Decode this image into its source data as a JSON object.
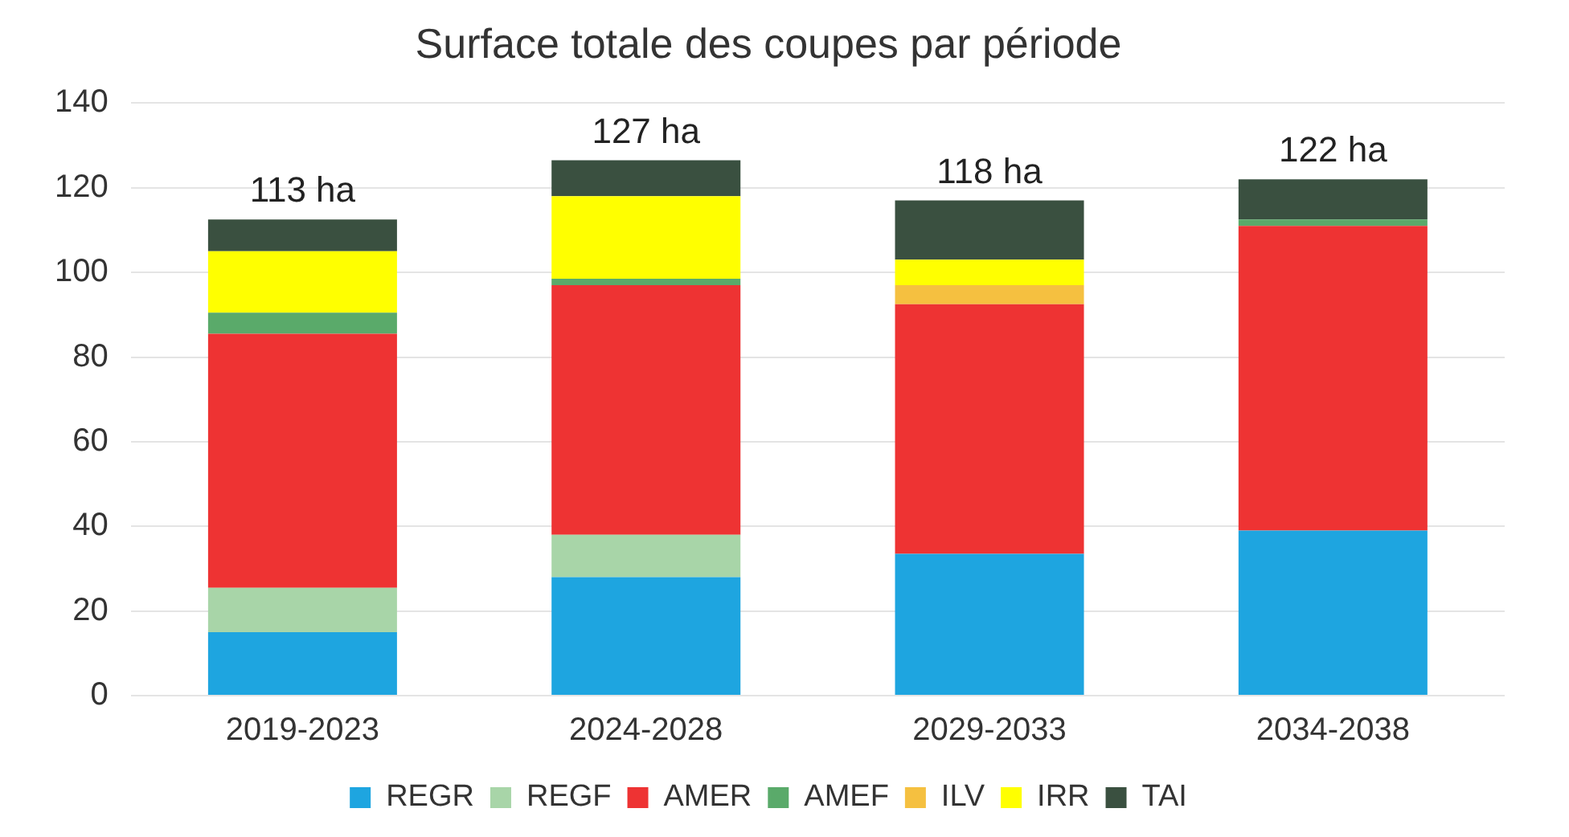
{
  "chart_data": {
    "type": "bar",
    "title": "Surface totale des coupes par période",
    "categories": [
      "2019-2023",
      "2024-2028",
      "2029-2033",
      "2034-2038"
    ],
    "stacked": true,
    "series": [
      {
        "name": "REGR",
        "color": "#1ea5e0",
        "values": [
          15,
          28,
          33.5,
          39
        ]
      },
      {
        "name": "REGF",
        "color": "#a8d5a8",
        "values": [
          10.5,
          10,
          0,
          0
        ]
      },
      {
        "name": "AMER",
        "color": "#ee3333",
        "values": [
          60,
          59,
          59,
          72
        ]
      },
      {
        "name": "AMEF",
        "color": "#5aaa6a",
        "values": [
          5,
          1.5,
          0,
          1.5
        ]
      },
      {
        "name": "ILV",
        "color": "#f5c040",
        "values": [
          0,
          0,
          4.5,
          0
        ]
      },
      {
        "name": "IRR",
        "color": "#ffff00",
        "values": [
          14.5,
          19.5,
          6,
          0
        ]
      },
      {
        "name": "TAI",
        "color": "#3a5040",
        "values": [
          7.5,
          8.5,
          14,
          9.5
        ]
      }
    ],
    "totals": [
      "113 ha",
      "127 ha",
      "118 ha",
      "122 ha"
    ],
    "ylim": [
      0,
      140
    ],
    "yticks": [
      0,
      20,
      40,
      60,
      80,
      100,
      120,
      140
    ],
    "grid": "y",
    "legend": "bottom"
  }
}
